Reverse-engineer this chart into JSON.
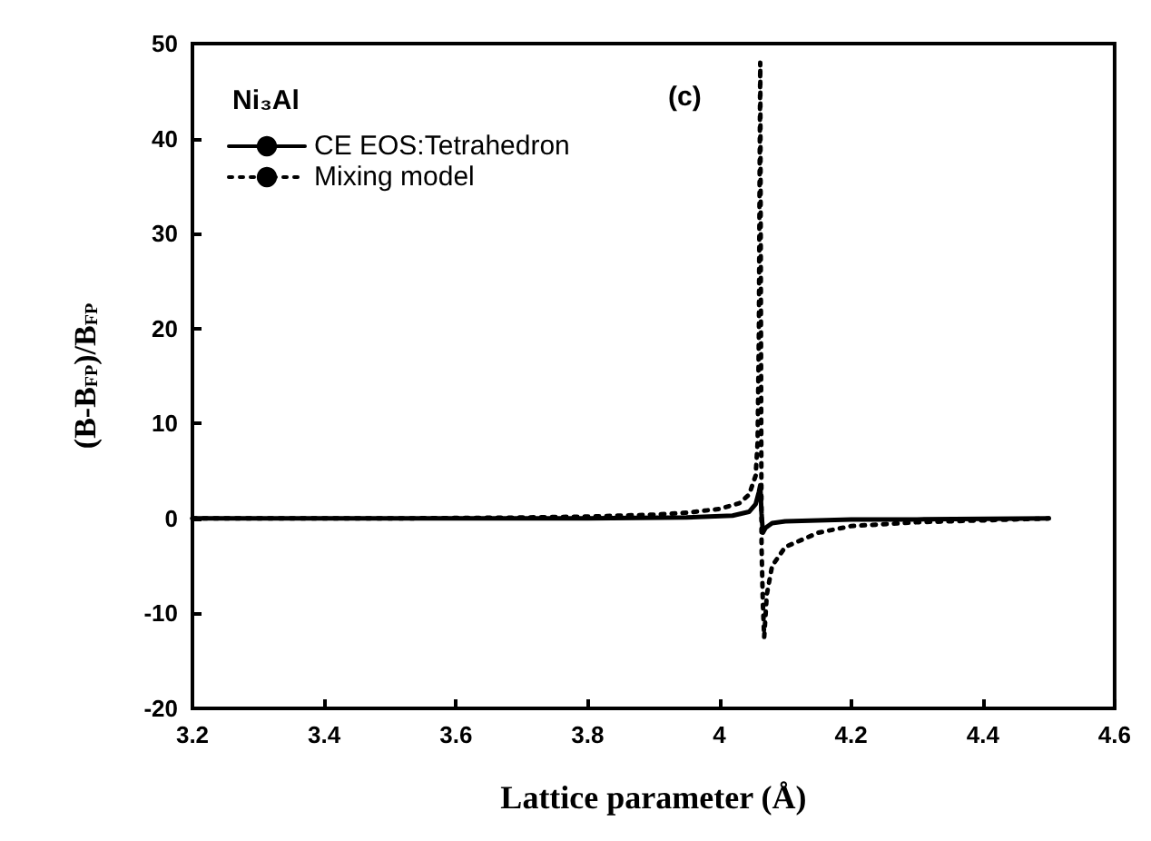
{
  "chart_data": {
    "type": "line",
    "xlabel": "Lattice parameter (Å)",
    "ylabel": "(B-B$_{FP}$)/B$_{FP}$",
    "annotations": [
      "Ni₃Al",
      "(c)"
    ],
    "xlim": [
      3.2,
      4.6
    ],
    "ylim": [
      -20,
      50
    ],
    "xticks": [
      3.2,
      3.4,
      3.6,
      3.8,
      4.0,
      4.2,
      4.4,
      4.6
    ],
    "yticks": [
      -20,
      -10,
      0,
      10,
      20,
      30,
      40,
      50
    ],
    "legend": "top left",
    "grid": false,
    "marker": "none",
    "series": [
      {
        "name": "CE EOS:Tetrahedron",
        "color": "#000000",
        "line_style": "solid",
        "x": [
          3.2,
          3.5,
          3.8,
          3.95,
          4.02,
          4.045,
          4.055,
          4.06,
          4.062,
          4.064,
          4.066,
          4.07,
          4.08,
          4.1,
          4.2,
          4.3,
          4.5
        ],
        "values": [
          0,
          0,
          0,
          0.1,
          0.3,
          0.7,
          1.5,
          2.8,
          3.5,
          0.5,
          -1.5,
          -1.0,
          -0.5,
          -0.3,
          -0.1,
          -0.1,
          0
        ]
      },
      {
        "name": "Mixing model",
        "color": "#000000",
        "line_style": "dotted",
        "x": [
          3.2,
          3.5,
          3.7,
          3.8,
          3.9,
          3.95,
          4.0,
          4.03,
          4.045,
          4.055,
          4.058,
          4.06,
          4.061,
          4.062,
          4.064,
          4.066,
          4.068,
          4.072,
          4.08,
          4.1,
          4.15,
          4.2,
          4.3,
          4.4,
          4.5
        ],
        "values": [
          0,
          0,
          0.1,
          0.2,
          0.4,
          0.6,
          1.0,
          1.6,
          2.5,
          4.5,
          8,
          20,
          35,
          48,
          -3,
          -9,
          -12.5,
          -8,
          -5,
          -3,
          -1.5,
          -0.8,
          -0.4,
          -0.2,
          0
        ]
      }
    ]
  }
}
